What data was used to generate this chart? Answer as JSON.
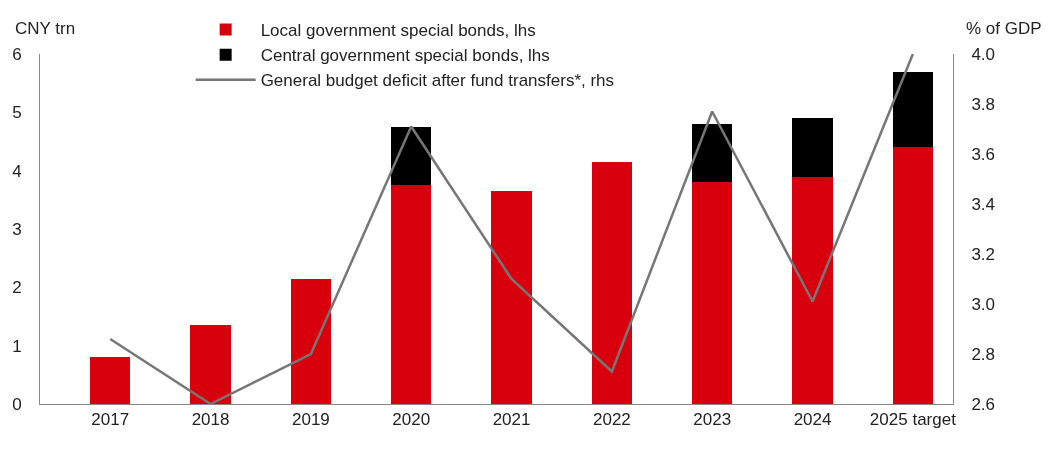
{
  "chart_data": {
    "type": "bar",
    "stacked": true,
    "ylabel": "CNY trn",
    "y2label": "% of GDP",
    "categories": [
      "2017",
      "2018",
      "2019",
      "2020",
      "2021",
      "2022",
      "2023",
      "2024",
      "2025 target"
    ],
    "series": [
      {
        "name": "Local government special bonds, lhs",
        "color": "#d9000d",
        "values": [
          0.8,
          1.35,
          2.15,
          3.75,
          3.65,
          4.15,
          3.8,
          3.9,
          4.4
        ]
      },
      {
        "name": "Central government special bonds, lhs",
        "color": "#000000",
        "values": [
          null,
          null,
          null,
          1.0,
          null,
          null,
          1.0,
          1.0,
          1.3
        ]
      },
      {
        "name": "General budget deficit after fund transfers*, rhs",
        "type": "line",
        "axis": "y2",
        "color": "#767676",
        "values": [
          2.86,
          2.6,
          2.8,
          3.71,
          3.1,
          2.73,
          3.77,
          3.01,
          4.0
        ]
      }
    ],
    "ylim": [
      0,
      6
    ],
    "yticks": [
      0,
      1,
      2,
      3,
      4,
      5,
      6
    ],
    "y2lim": [
      2.6,
      4.0
    ],
    "y2ticks": [
      {
        "value": 2.6,
        "label": "2.6"
      },
      {
        "value": 2.8,
        "label": "2.8"
      },
      {
        "value": 3.0,
        "label": "3.0"
      },
      {
        "value": 3.2,
        "label": "3.2"
      },
      {
        "value": 3.4,
        "label": "3.4"
      },
      {
        "value": 3.6,
        "label": "3.6"
      },
      {
        "value": 3.8,
        "label": "3.8"
      },
      {
        "value": 4.0,
        "label": "4.0"
      }
    ],
    "grid": false,
    "legend": "top",
    "marker": "none",
    "line_style": "solid"
  }
}
